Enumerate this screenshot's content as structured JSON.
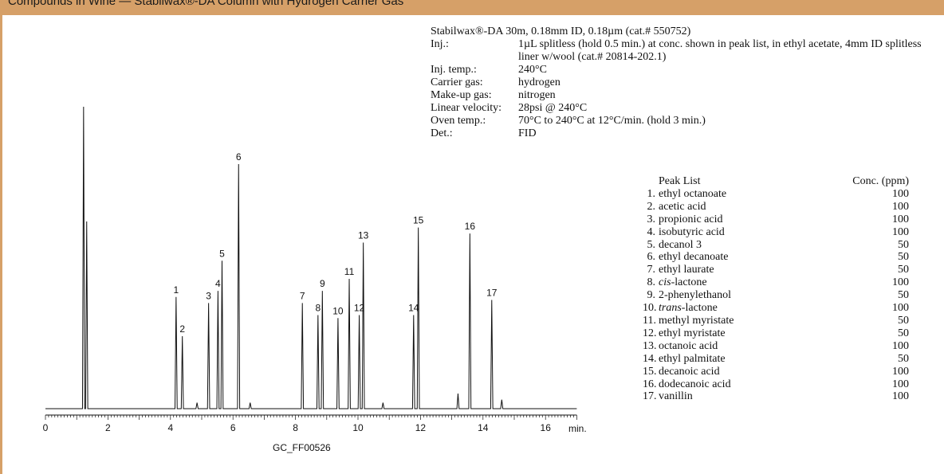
{
  "banner": {
    "text": "Compounds in Wine — Stabilwax®-DA Column with Hydrogen Carrier Gas"
  },
  "conditions": {
    "column": "Stabilwax®-DA 30m, 0.18mm ID, 0.18µm (cat.# 550752)",
    "rows": [
      {
        "label": "Inj.:",
        "value": "1µL splitless (hold 0.5 min.) at conc. shown in peak list, in ethyl acetate, 4mm ID splitless liner w/wool (cat.# 20814-202.1)"
      },
      {
        "label": "Inj. temp.:",
        "value": "240°C"
      },
      {
        "label": "Carrier gas:",
        "value": "hydrogen"
      },
      {
        "label": "Make-up gas:",
        "value": "nitrogen"
      },
      {
        "label": "Linear velocity:",
        "value": "28psi @ 240°C"
      },
      {
        "label": "Oven temp.:",
        "value": "70°C to 240°C at 12°C/min. (hold 3 min.)"
      },
      {
        "label": "Det.:",
        "value": "FID"
      }
    ]
  },
  "peak_list": {
    "title": "Peak List",
    "conc_header": "Conc. (ppm)",
    "items": [
      {
        "num": "1.",
        "name": "ethyl octanoate",
        "conc": "100"
      },
      {
        "num": "2.",
        "name": "acetic acid",
        "conc": "100"
      },
      {
        "num": "3.",
        "name": "propionic acid",
        "conc": "100"
      },
      {
        "num": "4.",
        "name": "isobutyric acid",
        "conc": "100"
      },
      {
        "num": "5.",
        "name": "decanol 3",
        "conc": "50"
      },
      {
        "num": "6.",
        "name": "ethyl decanoate",
        "conc": "50"
      },
      {
        "num": "7.",
        "name": "ethyl laurate",
        "conc": "50"
      },
      {
        "num": "8.",
        "name": "cis-lactone",
        "conc": "100",
        "italic": "cis"
      },
      {
        "num": "9.",
        "name": "2-phenylethanol",
        "conc": "50"
      },
      {
        "num": "10.",
        "name": "trans-lactone",
        "conc": "100",
        "italic": "trans"
      },
      {
        "num": "11.",
        "name": "methyl myristate",
        "conc": "50"
      },
      {
        "num": "12.",
        "name": "ethyl myristate",
        "conc": "50"
      },
      {
        "num": "13.",
        "name": "octanoic acid",
        "conc": "100"
      },
      {
        "num": "14.",
        "name": "ethyl palmitate",
        "conc": "50"
      },
      {
        "num": "15.",
        "name": "decanoic acid",
        "conc": "100"
      },
      {
        "num": "16.",
        "name": "dodecanoic acid",
        "conc": "100"
      },
      {
        "num": "17.",
        "name": "vanillin",
        "conc": "100"
      }
    ]
  },
  "chart_data": {
    "type": "line",
    "xlabel": "min.",
    "xlim": [
      0,
      17
    ],
    "xticks": [
      0,
      2,
      4,
      6,
      8,
      10,
      12,
      14,
      16
    ],
    "ylim": [
      0,
      100
    ],
    "baseline": 0,
    "code": "GC_FF00526",
    "peaks": [
      {
        "label": "1",
        "rt": 4.18,
        "height": 37
      },
      {
        "label": "2",
        "rt": 4.38,
        "height": 24
      },
      {
        "label": "3",
        "rt": 5.22,
        "height": 35
      },
      {
        "label": "4",
        "rt": 5.52,
        "height": 39
      },
      {
        "label": "5",
        "rt": 5.65,
        "height": 49
      },
      {
        "label": "6",
        "rt": 6.18,
        "height": 81
      },
      {
        "label": "7",
        "rt": 8.22,
        "height": 35
      },
      {
        "label": "8",
        "rt": 8.72,
        "height": 31
      },
      {
        "label": "9",
        "rt": 8.86,
        "height": 39
      },
      {
        "label": "10",
        "rt": 9.36,
        "height": 30
      },
      {
        "label": "11",
        "rt": 9.72,
        "height": 43
      },
      {
        "label": "12",
        "rt": 10.04,
        "height": 31
      },
      {
        "label": "13",
        "rt": 10.17,
        "height": 55
      },
      {
        "label": "14",
        "rt": 11.78,
        "height": 31
      },
      {
        "label": "15",
        "rt": 11.93,
        "height": 60
      },
      {
        "label": "16",
        "rt": 13.58,
        "height": 58
      },
      {
        "label": "17",
        "rt": 14.28,
        "height": 36
      }
    ],
    "unlabeled_peaks": [
      {
        "rt": 1.22,
        "height": 100
      },
      {
        "rt": 1.32,
        "height": 62
      },
      {
        "rt": 13.2,
        "height": 5
      },
      {
        "rt": 14.6,
        "height": 3
      },
      {
        "rt": 10.8,
        "height": 2
      },
      {
        "rt": 6.55,
        "height": 2
      },
      {
        "rt": 4.85,
        "height": 2
      }
    ]
  }
}
